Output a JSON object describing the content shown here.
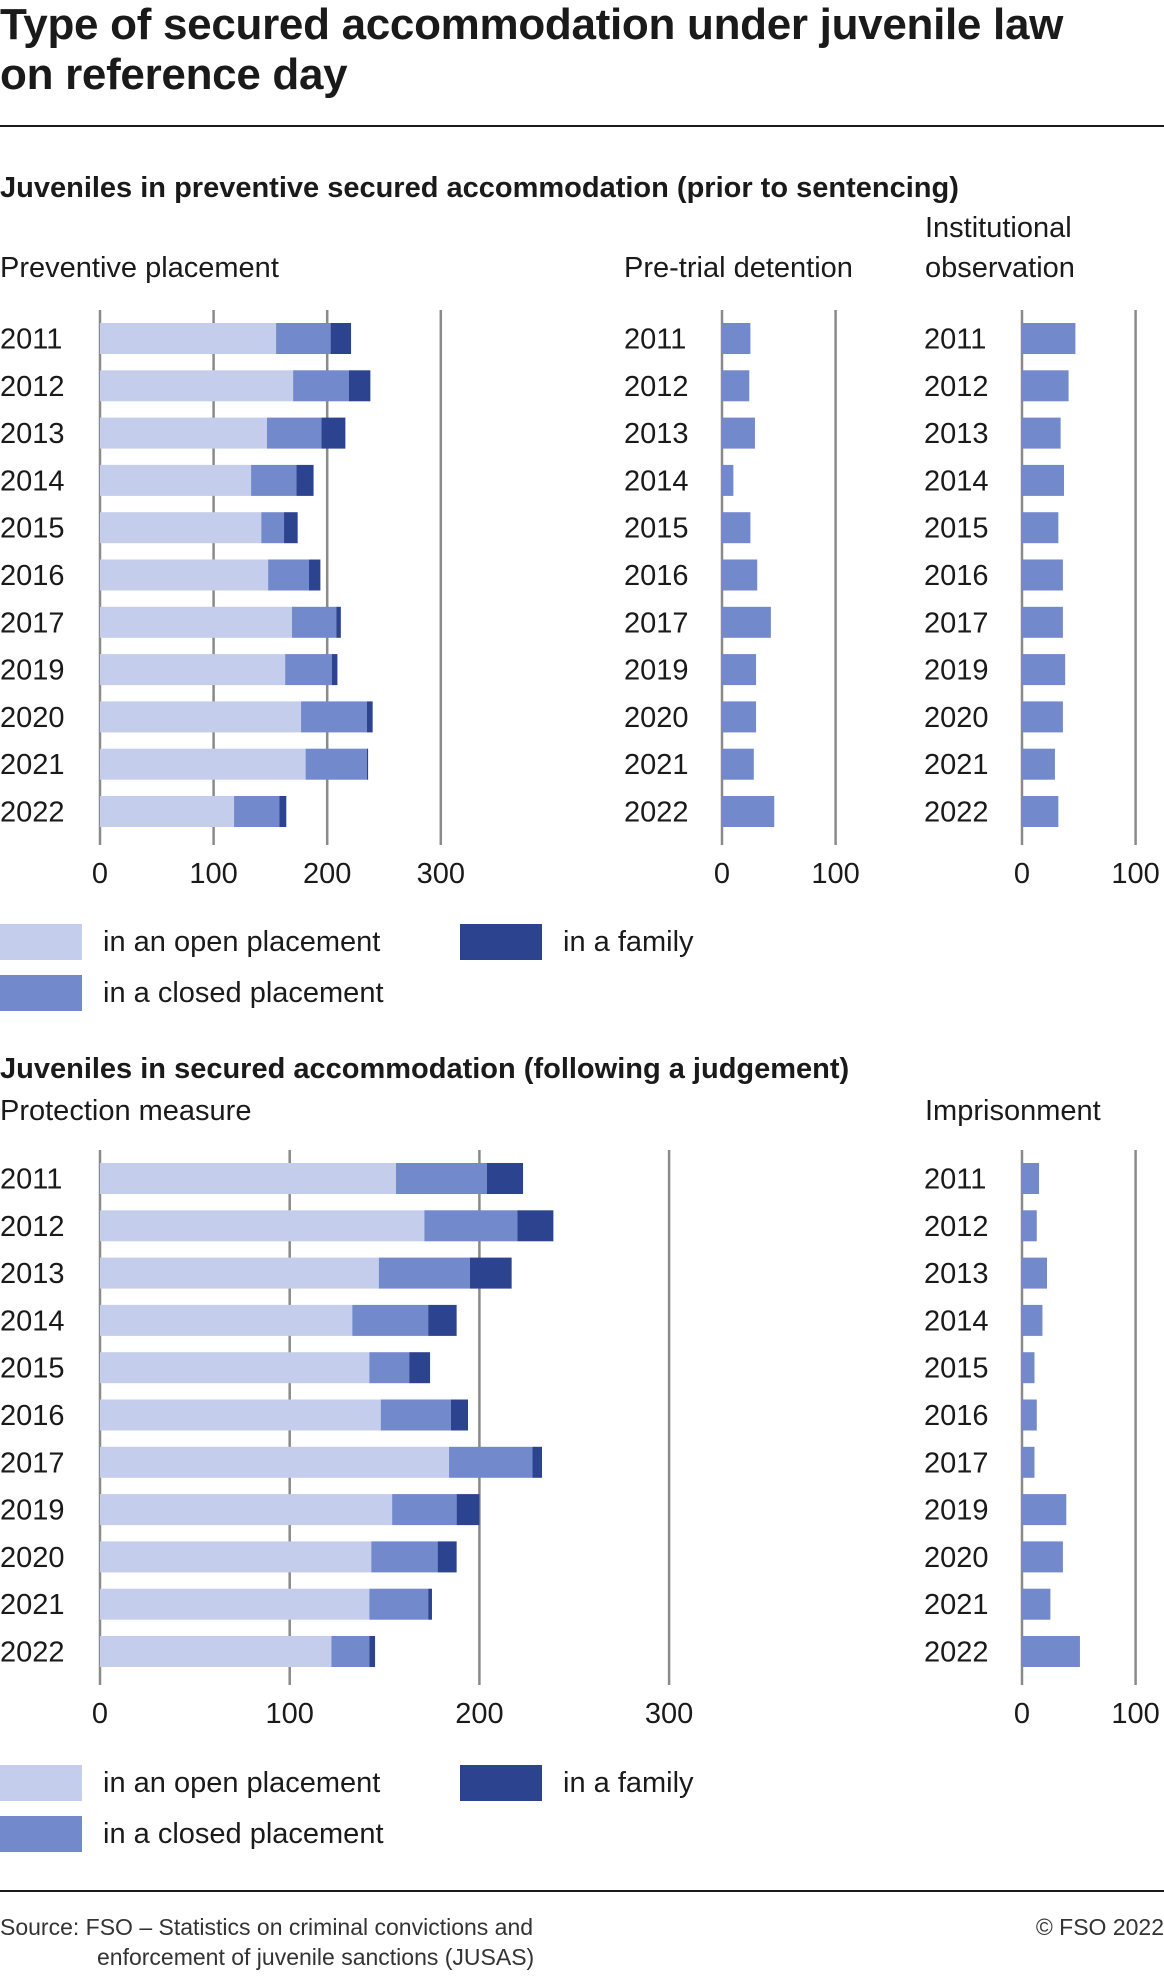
{
  "title_line1": "Type of secured accommodation under juvenile law",
  "title_line2": "on reference day",
  "section1_title": "Juveniles in preventive secured accommodation (prior to sentencing)",
  "section2_title": "Juveniles in secured accommodation (following a judgement)",
  "legend": {
    "open": "in an open placement",
    "closed": "in a closed placement",
    "family": "in a family"
  },
  "colors": {
    "open": "#c4cdeb",
    "closed": "#7289cb",
    "family": "#2c4490",
    "grid": "#8a8a8a",
    "text": "#1a1a1a"
  },
  "source_line1": "Source: FSO – Statistics on criminal convictions and",
  "source_line2": "enforcement of juvenile sanctions (JUSAS)",
  "copyright": "© FSO 2022",
  "chart_data": [
    {
      "type": "bar",
      "orientation": "horizontal",
      "stacked": true,
      "title": "Preventive placement",
      "categories": [
        "2011",
        "2012",
        "2013",
        "2014",
        "2015",
        "2016",
        "2017",
        "2019",
        "2020",
        "2021",
        "2022"
      ],
      "series": [
        {
          "name": "in an open placement",
          "values": [
            155,
            170,
            147,
            133,
            142,
            148,
            169,
            163,
            177,
            181,
            118
          ]
        },
        {
          "name": "in a closed placement",
          "values": [
            48,
            49,
            48,
            40,
            20,
            36,
            39,
            41,
            58,
            54,
            40
          ]
        },
        {
          "name": "in a family",
          "values": [
            18,
            19,
            21,
            15,
            12,
            10,
            4,
            5,
            5,
            1,
            6
          ]
        }
      ],
      "xlim": [
        0,
        300
      ],
      "ticks": [
        0,
        100,
        200,
        300
      ],
      "grid": true
    },
    {
      "type": "bar",
      "orientation": "horizontal",
      "title": "Pre-trial detention",
      "categories": [
        "2011",
        "2012",
        "2013",
        "2014",
        "2015",
        "2016",
        "2017",
        "2019",
        "2020",
        "2021",
        "2022"
      ],
      "series": [
        {
          "name": "in a closed placement",
          "values": [
            25,
            24,
            29,
            10,
            25,
            31,
            43,
            30,
            30,
            28,
            46
          ]
        }
      ],
      "xlim": [
        0,
        100
      ],
      "ticks": [
        0,
        100
      ],
      "grid": true
    },
    {
      "type": "bar",
      "orientation": "horizontal",
      "title": "Institutional observation",
      "categories": [
        "2011",
        "2012",
        "2013",
        "2014",
        "2015",
        "2016",
        "2017",
        "2019",
        "2020",
        "2021",
        "2022"
      ],
      "series": [
        {
          "name": "in a closed placement",
          "values": [
            47,
            41,
            34,
            37,
            32,
            36,
            36,
            38,
            36,
            29,
            32
          ]
        }
      ],
      "xlim": [
        0,
        100
      ],
      "ticks": [
        0,
        100
      ],
      "grid": true
    },
    {
      "type": "bar",
      "orientation": "horizontal",
      "stacked": true,
      "title": "Protection measure",
      "categories": [
        "2011",
        "2012",
        "2013",
        "2014",
        "2015",
        "2016",
        "2017",
        "2019",
        "2020",
        "2021",
        "2022"
      ],
      "series": [
        {
          "name": "in an open placement",
          "values": [
            156,
            171,
            147,
            133,
            142,
            148,
            184,
            154,
            143,
            142,
            122
          ]
        },
        {
          "name": "in a closed placement",
          "values": [
            48,
            49,
            48,
            40,
            21,
            37,
            44,
            34,
            35,
            31,
            20
          ]
        },
        {
          "name": "in a family",
          "values": [
            19,
            19,
            22,
            15,
            11,
            9,
            5,
            12,
            10,
            2,
            3
          ]
        }
      ],
      "xlim": [
        0,
        300
      ],
      "ticks": [
        0,
        100,
        200,
        300
      ],
      "grid": true
    },
    {
      "type": "bar",
      "orientation": "horizontal",
      "title": "Imprisonment",
      "categories": [
        "2011",
        "2012",
        "2013",
        "2014",
        "2015",
        "2016",
        "2017",
        "2019",
        "2020",
        "2021",
        "2022"
      ],
      "series": [
        {
          "name": "in a closed placement",
          "values": [
            15,
            13,
            22,
            18,
            11,
            13,
            11,
            39,
            36,
            25,
            51
          ]
        }
      ],
      "xlim": [
        0,
        100
      ],
      "ticks": [
        0,
        100
      ],
      "grid": true
    }
  ]
}
